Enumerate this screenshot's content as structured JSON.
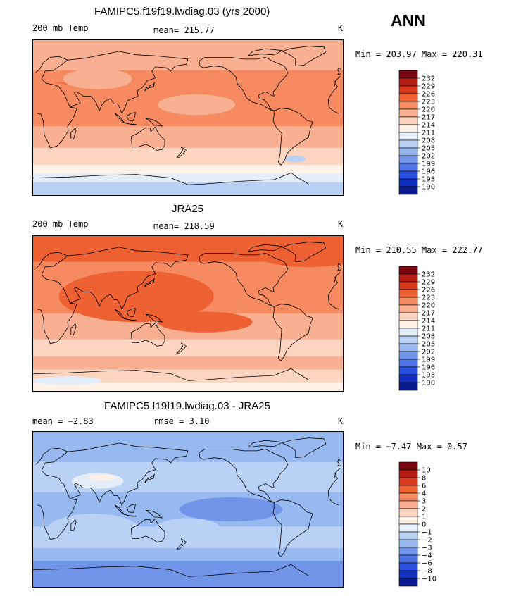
{
  "season": "ANN",
  "colors": {
    "warm": [
      "#7a0410",
      "#b31e16",
      "#d93a1e",
      "#ee6133",
      "#f68a60",
      "#f9b092",
      "#fcd4bf",
      "#fef0e6"
    ],
    "neutral": "#e4eefa",
    "cool": [
      "#b9d1f5",
      "#97b9f0",
      "#7295ea",
      "#4f73e6",
      "#2a50dd",
      "#102fbe",
      "#0a1a8a"
    ],
    "coast": "#000000"
  },
  "panels": [
    {
      "title": "FAMIPC5.f19f19.lwdiag.03 (yrs 2000)",
      "left_label": "200 mb Temp",
      "stat_label": "mean=",
      "stat_value": "215.77",
      "units": "K",
      "range": "Min = 203.97 Max = 220.31"
    },
    {
      "title": "JRA25",
      "left_label": "200 mb Temp",
      "stat_label": "mean=",
      "stat_value": "218.59",
      "units": "K",
      "range": "Min = 210.55 Max = 222.77"
    },
    {
      "title": "FAMIPC5.f19f19.lwdiag.03 - JRA25",
      "left_label": "mean =   −2.83",
      "stat_label": "rmse =",
      "stat_value": "3.10",
      "units": "K",
      "range": "Min =  −7.47 Max =   0.57"
    }
  ],
  "chart_data": [
    {
      "type": "heatmap",
      "title": "FAMIPC5.f19f19.lwdiag.03 (yrs 2000)",
      "variable": "200 mb Temp",
      "units": "K",
      "mean": 215.77,
      "min": 203.97,
      "max": 220.31,
      "colorbar": {
        "levels": [
          "232",
          "229",
          "226",
          "223",
          "220",
          "217",
          "214",
          "211",
          "208",
          "205",
          "202",
          "199",
          "196",
          "193",
          "190"
        ]
      },
      "bands": [
        {
          "lat_from": 90,
          "lat_to": 55,
          "level": 217
        },
        {
          "lat_from": 55,
          "lat_to": 30,
          "level": 220
        },
        {
          "lat_from": 30,
          "lat_to": -10,
          "level": 220
        },
        {
          "lat_from": -10,
          "lat_to": -35,
          "level": 217
        },
        {
          "lat_from": -35,
          "lat_to": -55,
          "level": 214
        },
        {
          "lat_from": -55,
          "lat_to": -65,
          "level": 211
        },
        {
          "lat_from": -65,
          "lat_to": -75,
          "level": 208
        },
        {
          "lat_from": -75,
          "lat_to": -90,
          "level": 205
        }
      ],
      "patches": [
        {
          "lon": 30,
          "lat": 38,
          "dlon": 10,
          "dlat": 3,
          "level": 223
        },
        {
          "lon": 20,
          "lat": 25,
          "dlon": 35,
          "dlat": 16,
          "level": 220
        },
        {
          "lon": 75,
          "lat": 45,
          "dlon": 40,
          "dlat": 12,
          "level": 217
        },
        {
          "lon": 190,
          "lat": 15,
          "dlon": 45,
          "dlat": 12,
          "level": 217
        },
        {
          "lon": 305,
          "lat": -48,
          "dlon": 12,
          "dlat": 4,
          "level": 205
        }
      ]
    },
    {
      "type": "heatmap",
      "title": "JRA25",
      "variable": "200 mb Temp",
      "units": "K",
      "mean": 218.59,
      "min": 210.55,
      "max": 222.77,
      "colorbar": {
        "levels": [
          "232",
          "229",
          "226",
          "223",
          "220",
          "217",
          "214",
          "211",
          "208",
          "205",
          "202",
          "199",
          "196",
          "193",
          "190"
        ]
      },
      "bands": [
        {
          "lat_from": 90,
          "lat_to": 60,
          "level": 223
        },
        {
          "lat_from": 60,
          "lat_to": 30,
          "level": 220
        },
        {
          "lat_from": 30,
          "lat_to": 0,
          "level": 220
        },
        {
          "lat_from": 0,
          "lat_to": -30,
          "level": 217
        },
        {
          "lat_from": -30,
          "lat_to": -50,
          "level": 214
        },
        {
          "lat_from": -50,
          "lat_to": -65,
          "level": 217
        },
        {
          "lat_from": -65,
          "lat_to": -80,
          "level": 214
        },
        {
          "lat_from": -80,
          "lat_to": -90,
          "level": 211
        }
      ],
      "patches": [
        {
          "lon": 120,
          "lat": 20,
          "dlon": 90,
          "dlat": 30,
          "level": 223
        },
        {
          "lon": 200,
          "lat": -10,
          "dlon": 55,
          "dlat": 12,
          "level": 223
        },
        {
          "lon": 320,
          "lat": 68,
          "dlon": 60,
          "dlat": 14,
          "level": 223
        },
        {
          "lon": 40,
          "lat": -78,
          "dlon": 40,
          "dlat": 5,
          "level": 208
        }
      ]
    },
    {
      "type": "heatmap",
      "title": "FAMIPC5.f19f19.lwdiag.03 - JRA25",
      "units": "K",
      "mean": -2.83,
      "rmse": 3.1,
      "min": -7.47,
      "max": 0.57,
      "colorbar": {
        "levels": [
          "10",
          "8",
          "6",
          "4",
          "3",
          "2",
          "1",
          "0",
          "−1",
          "−2",
          "−3",
          "−4",
          "−6",
          "−8",
          "−10"
        ]
      },
      "bands": [
        {
          "lat_from": 90,
          "lat_to": 55,
          "level": -3
        },
        {
          "lat_from": 55,
          "lat_to": 20,
          "level": -2
        },
        {
          "lat_from": 20,
          "lat_to": -20,
          "level": -3
        },
        {
          "lat_from": -20,
          "lat_to": -45,
          "level": -2
        },
        {
          "lat_from": -45,
          "lat_to": -60,
          "level": -3
        },
        {
          "lat_from": -60,
          "lat_to": -90,
          "level": -4
        }
      ],
      "patches": [
        {
          "lon": 75,
          "lat": 33,
          "dlon": 30,
          "dlat": 9,
          "level": -1
        },
        {
          "lon": 80,
          "lat": 37,
          "dlon": 15,
          "dlat": 4,
          "level": 0
        },
        {
          "lon": 230,
          "lat": 0,
          "dlon": 60,
          "dlat": 14,
          "level": -4
        },
        {
          "lon": 70,
          "lat": -25,
          "dlon": 55,
          "dlat": 20,
          "level": -2
        },
        {
          "lon": 180,
          "lat": -25,
          "dlon": 40,
          "dlat": 15,
          "level": -2
        }
      ]
    }
  ]
}
